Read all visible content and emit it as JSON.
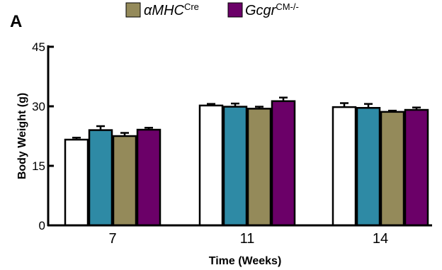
{
  "panel_label": "A",
  "chart_data": {
    "type": "bar",
    "title": "",
    "xlabel": "Time (Weeks)",
    "ylabel": "Body Weight (g)",
    "ylim": [
      0,
      45
    ],
    "yticks": [
      "0",
      "15",
      "30",
      "45"
    ],
    "categories": [
      "7",
      "11",
      "14"
    ],
    "legend_placement": "top",
    "series": [
      {
        "color": "#ffffff",
        "values": [
          21.6,
          30.2,
          29.8
        ],
        "errors": [
          0.5,
          0.4,
          1.0
        ]
      },
      {
        "color": "#2e8aa5",
        "values": [
          24.0,
          29.9,
          29.6
        ],
        "errors": [
          1.0,
          0.8,
          1.0
        ]
      },
      {
        "name": "αMHCCre",
        "legend_main": "αMHC",
        "legend_sup": "Cre",
        "color": "#948a5a",
        "values": [
          22.5,
          29.4,
          28.6
        ],
        "errors": [
          0.8,
          0.5,
          0.3
        ]
      },
      {
        "name": "GcgrCM-/-",
        "legend_main": "Gcgr",
        "legend_sup": "CM-/-",
        "color": "#6b0068",
        "values": [
          24.1,
          31.3,
          29.1
        ],
        "errors": [
          0.5,
          0.9,
          0.6
        ]
      }
    ]
  }
}
